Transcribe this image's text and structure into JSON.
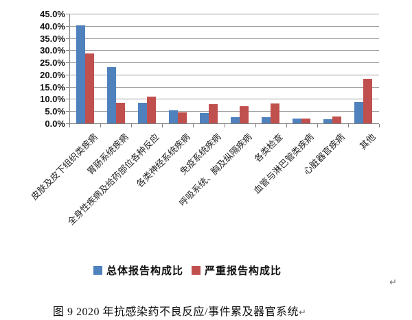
{
  "chart_data": {
    "type": "bar",
    "title": "",
    "xlabel": "",
    "ylabel": "",
    "categories": [
      "皮肤及皮下组织类疾病",
      "胃肠系统疾病",
      "全身性疾病及给药部位各种反应",
      "各类神经系统疾病",
      "免疫系统疾病",
      "呼吸系统、胸及纵隔疾病",
      "各类检查",
      "血管与淋巴管类疾病",
      "心脏器官疾病",
      "其他"
    ],
    "series": [
      {
        "name": "总体报告构成比",
        "color": "#4F81BD",
        "values": [
          40.3,
          23.2,
          8.4,
          5.3,
          4.2,
          2.6,
          2.4,
          2.0,
          1.7,
          8.8
        ]
      },
      {
        "name": "严重报告构成比",
        "color": "#C0504D",
        "values": [
          28.8,
          8.4,
          11.1,
          4.4,
          7.8,
          6.9,
          8.2,
          2.0,
          2.7,
          18.4
        ]
      }
    ],
    "ylim": [
      0,
      45
    ],
    "ytick_step": 5,
    "ytick_labels": [
      "45.0%",
      "40.0%",
      "35.0%",
      "30.0%",
      "25.0%",
      "20.0%",
      "15.0%",
      "10.0%",
      "5.0%",
      "0.0%"
    ],
    "grid": true,
    "legend_position": "bottom"
  },
  "caption": {
    "text": "图 9  2020 年抗感染药不良反应/事件累及器官系统"
  },
  "marks": {
    "paragraph_mark": "↵"
  },
  "colors": {
    "grid": "#9A9A9A",
    "axis": "#808080",
    "series_total": "#4F81BD",
    "series_serious": "#C0504D",
    "background": "#FFFFFF"
  }
}
